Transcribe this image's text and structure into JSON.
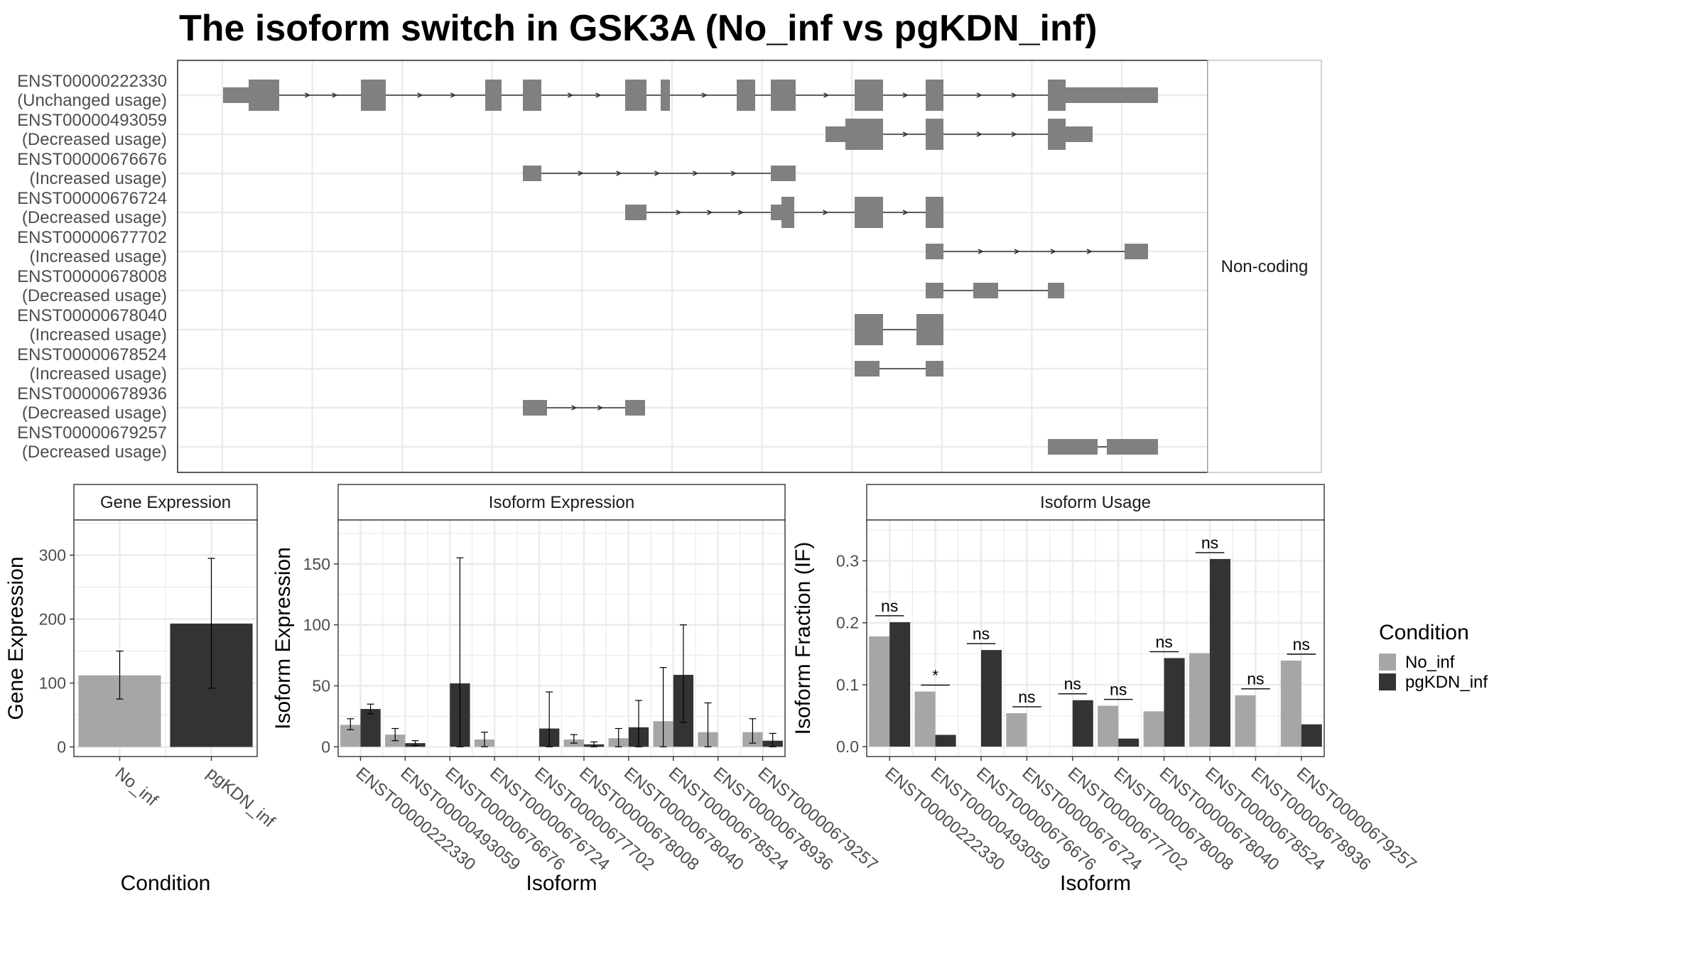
{
  "title": "The isoform switch in GSK3A (No_inf vs pgKDN_inf)",
  "structure": {
    "strip_label": "Non-coding",
    "transcripts": [
      {
        "id": "ENST00000222330",
        "usage": "(Unchanged usage)"
      },
      {
        "id": "ENST00000493059",
        "usage": "(Decreased usage)"
      },
      {
        "id": "ENST00000676676",
        "usage": "(Increased usage)"
      },
      {
        "id": "ENST00000676724",
        "usage": "(Decreased usage)"
      },
      {
        "id": "ENST00000677702",
        "usage": "(Increased usage)"
      },
      {
        "id": "ENST00000678008",
        "usage": "(Decreased usage)"
      },
      {
        "id": "ENST00000678040",
        "usage": "(Increased usage)"
      },
      {
        "id": "ENST00000678524",
        "usage": "(Increased usage)"
      },
      {
        "id": "ENST00000678936",
        "usage": "(Decreased usage)"
      },
      {
        "id": "ENST00000679257",
        "usage": "(Decreased usage)"
      }
    ]
  },
  "legend": {
    "title": "Condition",
    "items": [
      {
        "label": "No_inf",
        "color": "#a6a6a6"
      },
      {
        "label": "pgKDN_inf",
        "color": "#333333"
      }
    ]
  },
  "chart_data": [
    {
      "type": "bar",
      "title": "Gene Expression",
      "xlabel": "Condition",
      "ylabel": "Gene Expression",
      "categories": [
        "No_inf",
        "pgKDN_inf"
      ],
      "values": [
        112,
        193
      ],
      "error_low": [
        75,
        92
      ],
      "error_high": [
        150,
        295
      ],
      "ylim": [
        -15,
        355
      ],
      "yticks": [
        0,
        100,
        200,
        300
      ]
    },
    {
      "type": "bar",
      "title": "Isoform Expression",
      "xlabel": "Isoform",
      "ylabel": "Isoform Expression",
      "categories": [
        "ENST00000222330",
        "ENST00000493059",
        "ENST00000676676",
        "ENST00000676724",
        "ENST00000677702",
        "ENST00000678008",
        "ENST00000678040",
        "ENST00000678524",
        "ENST00000678936",
        "ENST00000679257"
      ],
      "series": [
        {
          "name": "No_inf",
          "values": [
            18,
            10,
            0,
            6,
            0,
            6,
            7,
            21,
            12,
            12
          ],
          "error_low": [
            14,
            5,
            0,
            0,
            0,
            3,
            0,
            0,
            0,
            3
          ],
          "error_high": [
            23,
            15,
            0,
            12,
            0,
            10,
            15,
            65,
            36,
            23
          ]
        },
        {
          "name": "pgKDN_inf",
          "values": [
            31,
            3,
            52,
            0,
            15,
            2,
            16,
            59,
            0,
            5
          ],
          "error_low": [
            27,
            1,
            0,
            0,
            0,
            0,
            0,
            20,
            0,
            0
          ],
          "error_high": [
            35,
            5,
            155,
            0,
            45,
            4,
            38,
            100,
            0,
            11
          ]
        }
      ],
      "ylim": [
        -8,
        186
      ],
      "yticks": [
        0,
        50,
        100,
        150
      ]
    },
    {
      "type": "bar",
      "title": "Isoform Usage",
      "xlabel": "Isoform",
      "ylabel": "Isoform Fraction (IF)",
      "categories": [
        "ENST00000222330",
        "ENST00000493059",
        "ENST00000676676",
        "ENST00000676724",
        "ENST00000677702",
        "ENST00000678008",
        "ENST00000678040",
        "ENST00000678524",
        "ENST00000678936",
        "ENST00000679257"
      ],
      "series": [
        {
          "name": "No_inf",
          "values": [
            0.178,
            0.089,
            0,
            0.054,
            0,
            0.066,
            0.057,
            0.151,
            0.083,
            0.139
          ]
        },
        {
          "name": "pgKDN_inf",
          "values": [
            0.201,
            0.019,
            0.156,
            0,
            0.075,
            0.013,
            0.143,
            0.303,
            0,
            0.036
          ]
        }
      ],
      "significance": [
        "ns",
        "*",
        "ns",
        "ns",
        "ns",
        "ns",
        "ns",
        "ns",
        "ns",
        "ns"
      ],
      "ylim": [
        -0.016,
        0.366
      ],
      "yticks": [
        "0.0",
        "0.1",
        "0.2",
        "0.3"
      ]
    }
  ]
}
